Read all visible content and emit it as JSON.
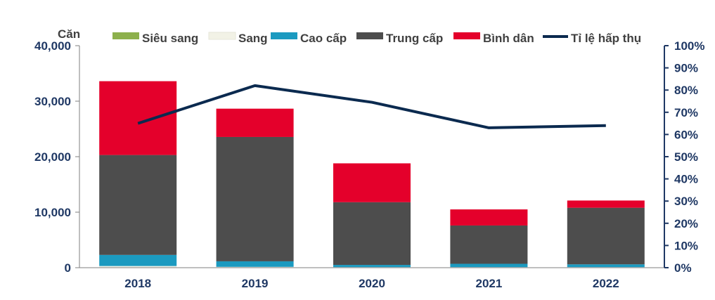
{
  "chart_data": {
    "type": "bar",
    "stacked": true,
    "categories": [
      "2018",
      "2019",
      "2020",
      "2021",
      "2022"
    ],
    "y_unit_label": "Căn",
    "ylim": [
      0,
      40000
    ],
    "y_ticks": [
      0,
      10000,
      20000,
      30000,
      40000
    ],
    "y_tick_labels": [
      "0",
      "10,000",
      "20,000",
      "30,000",
      "40,000"
    ],
    "y2lim": [
      0,
      100
    ],
    "y2_ticks": [
      0,
      10,
      20,
      30,
      40,
      50,
      60,
      70,
      80,
      90,
      100
    ],
    "y2_tick_labels": [
      "0%",
      "10%",
      "20%",
      "30%",
      "40%",
      "50%",
      "60%",
      "70%",
      "80%",
      "90%",
      "100%"
    ],
    "legend_position": "top",
    "series": [
      {
        "name": "Siêu sang",
        "color": "#8DB04C",
        "values": [
          0,
          0,
          0,
          0,
          0
        ]
      },
      {
        "name": "Sang",
        "color": "#F2F2E6",
        "values": [
          300,
          150,
          100,
          100,
          100
        ]
      },
      {
        "name": "Cao cấp",
        "color": "#1B9AC0",
        "values": [
          2000,
          1000,
          400,
          600,
          500
        ]
      },
      {
        "name": "Trung cấp",
        "color": "#4D4D4D",
        "values": [
          18000,
          22400,
          11300,
          6900,
          10200
        ]
      },
      {
        "name": "Bình dân",
        "color": "#E4002B",
        "values": [
          13300,
          5100,
          7000,
          2900,
          1300
        ]
      }
    ],
    "line_series": {
      "name": "Tỉ lệ hấp thụ",
      "color": "#0B2A4F",
      "axis": "right",
      "values": [
        65,
        82,
        74.5,
        63,
        64
      ]
    }
  }
}
